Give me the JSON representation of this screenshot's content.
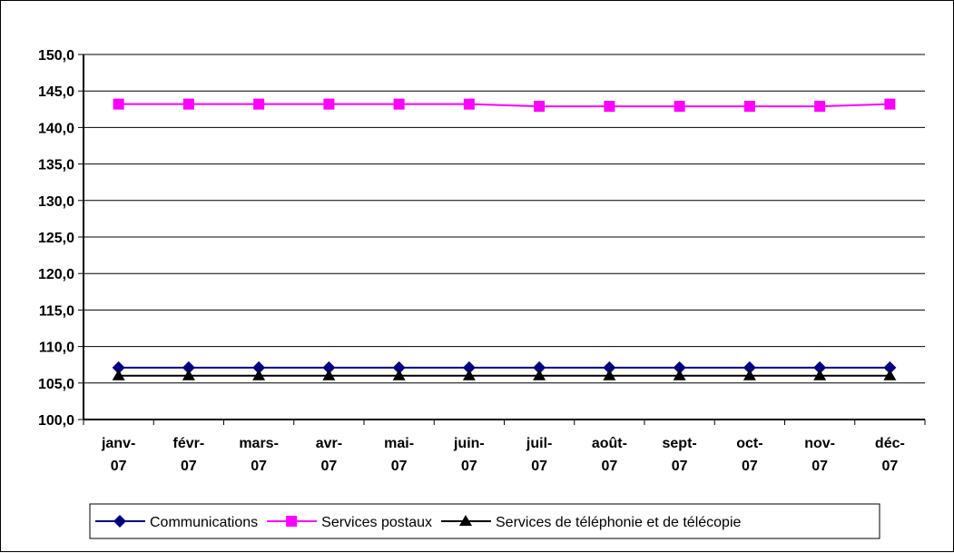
{
  "chart_data": {
    "type": "line",
    "categories": [
      [
        "janv-",
        "07"
      ],
      [
        "févr-",
        "07"
      ],
      [
        "mars-",
        "07"
      ],
      [
        "avr-",
        "07"
      ],
      [
        "mai-",
        "07"
      ],
      [
        "juin-",
        "07"
      ],
      [
        "juil-",
        "07"
      ],
      [
        "août-",
        "07"
      ],
      [
        "sept-",
        "07"
      ],
      [
        "oct-",
        "07"
      ],
      [
        "nov-",
        "07"
      ],
      [
        "déc-",
        "07"
      ]
    ],
    "series": [
      {
        "name": "Communications",
        "color": "#000080",
        "marker": "diamond",
        "values": [
          107.1,
          107.1,
          107.1,
          107.1,
          107.1,
          107.1,
          107.1,
          107.1,
          107.1,
          107.1,
          107.1,
          107.1
        ]
      },
      {
        "name": "Services postaux",
        "color": "#FF00FF",
        "marker": "square",
        "values": [
          143.2,
          143.2,
          143.2,
          143.2,
          143.2,
          143.2,
          142.9,
          142.9,
          142.9,
          142.9,
          142.9,
          143.2
        ]
      },
      {
        "name": "Services de téléphonie et de télécopie",
        "color": "#000000",
        "marker": "triangle",
        "values": [
          106.0,
          106.0,
          106.0,
          106.0,
          106.0,
          106.0,
          106.0,
          106.0,
          106.0,
          106.0,
          106.0,
          106.0
        ]
      }
    ],
    "ylim": [
      100,
      150
    ],
    "ytick_step": 5,
    "ytick_labels": [
      "100,0",
      "105,0",
      "110,0",
      "115,0",
      "120,0",
      "125,0",
      "130,0",
      "135,0",
      "140,0",
      "145,0",
      "150,0"
    ],
    "title": "",
    "xlabel": "",
    "ylabel": "",
    "grid": true,
    "legend_position": "bottom"
  }
}
